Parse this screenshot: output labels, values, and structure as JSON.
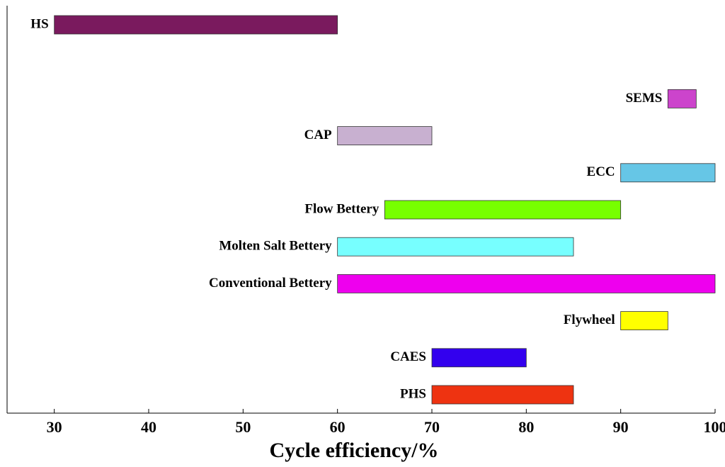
{
  "chart_data": {
    "type": "floating_bar",
    "xlabel": "Cycle efficiency/%",
    "categories": [
      "HS",
      null,
      "SEMS",
      "CAP",
      "ECC",
      "Flow Bettery",
      "Molten Salt Bettery",
      "Conventional Bettery",
      "Flywheel",
      "CAES",
      "PHS"
    ],
    "values": [
      [
        30,
        60
      ],
      null,
      [
        95,
        98
      ],
      [
        60,
        70
      ],
      [
        90,
        100
      ],
      [
        65,
        90
      ],
      [
        60,
        85
      ],
      [
        60,
        100
      ],
      [
        90,
        95
      ],
      [
        70,
        80
      ],
      [
        70,
        85
      ]
    ],
    "colors": [
      "#7a1a5e",
      null,
      "#cc44cc",
      "#c8b0d0",
      "#66c6e6",
      "#77ff00",
      "#77ffff",
      "#ee00ee",
      "#ffff00",
      "#3300ee",
      "#ee3311"
    ],
    "xlim": [
      25,
      100
    ],
    "xticks": [
      30,
      40,
      50,
      60,
      70,
      80,
      90,
      100
    ]
  }
}
